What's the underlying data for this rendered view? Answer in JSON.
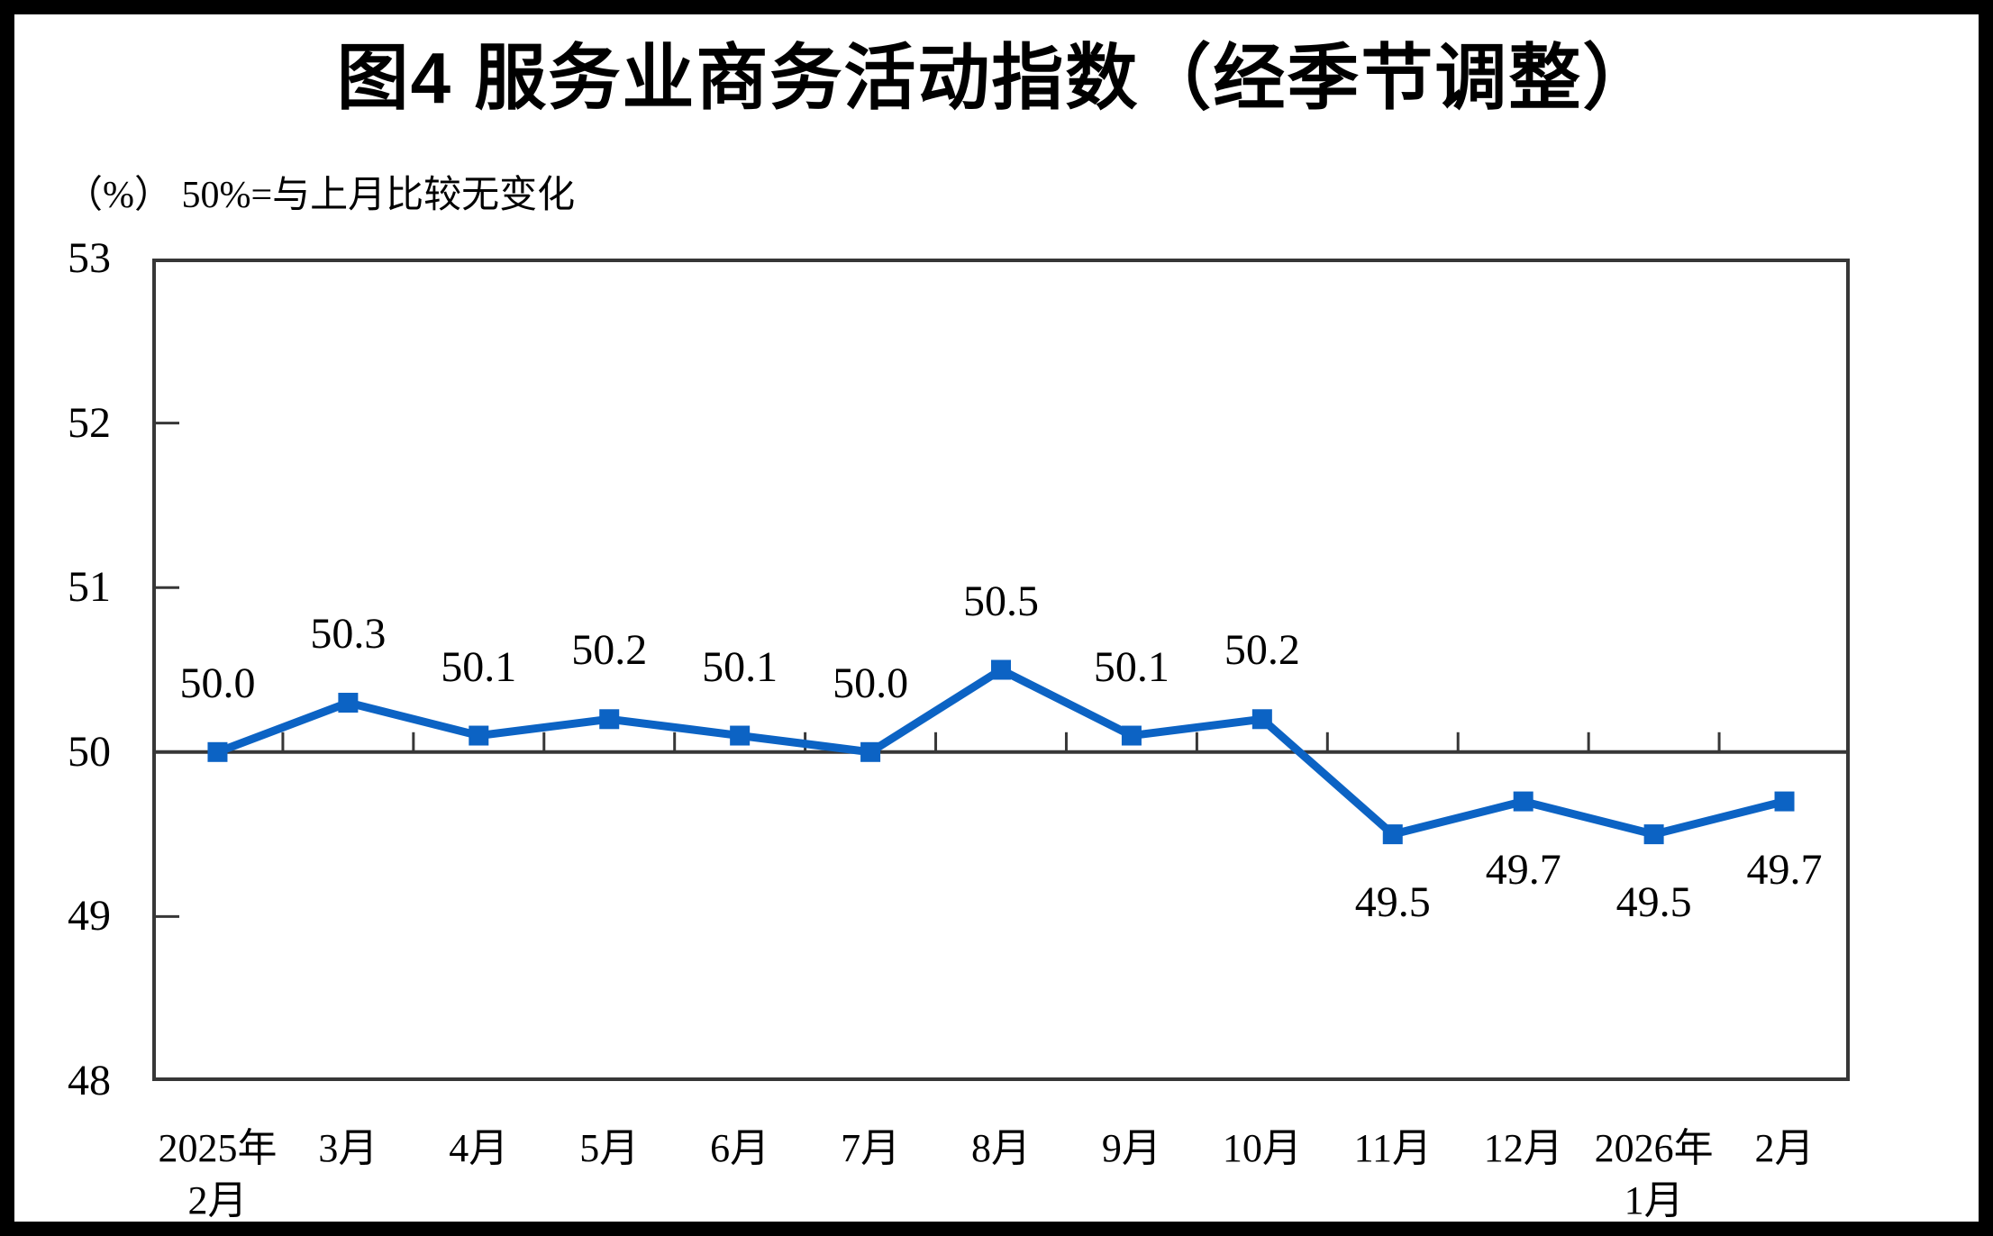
{
  "page": {
    "title": "图4 服务业商务活动指数（经季节调整）",
    "unit_note": "（%） 50%=与上月比较无变化"
  },
  "colors": {
    "line": "#0C63C4",
    "axis": "#373737",
    "background": "#ffffff",
    "frame": "#000000",
    "text": "#000000"
  },
  "chart_data": {
    "type": "line",
    "title": "图4 服务业商务活动指数（经季节调整）",
    "subtitle": "（%） 50%=与上月比较无变化",
    "categories": [
      [
        "2025年",
        "2月"
      ],
      [
        "3月"
      ],
      [
        "4月"
      ],
      [
        "5月"
      ],
      [
        "6月"
      ],
      [
        "7月"
      ],
      [
        "8月"
      ],
      [
        "9月"
      ],
      [
        "10月"
      ],
      [
        "11月"
      ],
      [
        "12月"
      ],
      [
        "2026年",
        "1月"
      ],
      [
        "2月"
      ]
    ],
    "series": [
      {
        "name": "服务业商务活动指数",
        "values": [
          50.0,
          50.3,
          50.1,
          50.2,
          50.1,
          50.0,
          50.5,
          50.1,
          50.2,
          49.5,
          49.7,
          49.5,
          49.7
        ]
      }
    ],
    "data_labels": [
      "50.0",
      "50.3",
      "50.1",
      "50.2",
      "50.1",
      "50.0",
      "50.5",
      "50.1",
      "50.2",
      "49.5",
      "49.7",
      "49.5",
      "49.7"
    ],
    "ylim": [
      48,
      53
    ],
    "yticks": [
      48,
      49,
      50,
      51,
      52,
      53
    ],
    "reference_line": 50,
    "grid": "off",
    "legend": "none",
    "marker": "square",
    "line_color": "#0C63C4"
  }
}
